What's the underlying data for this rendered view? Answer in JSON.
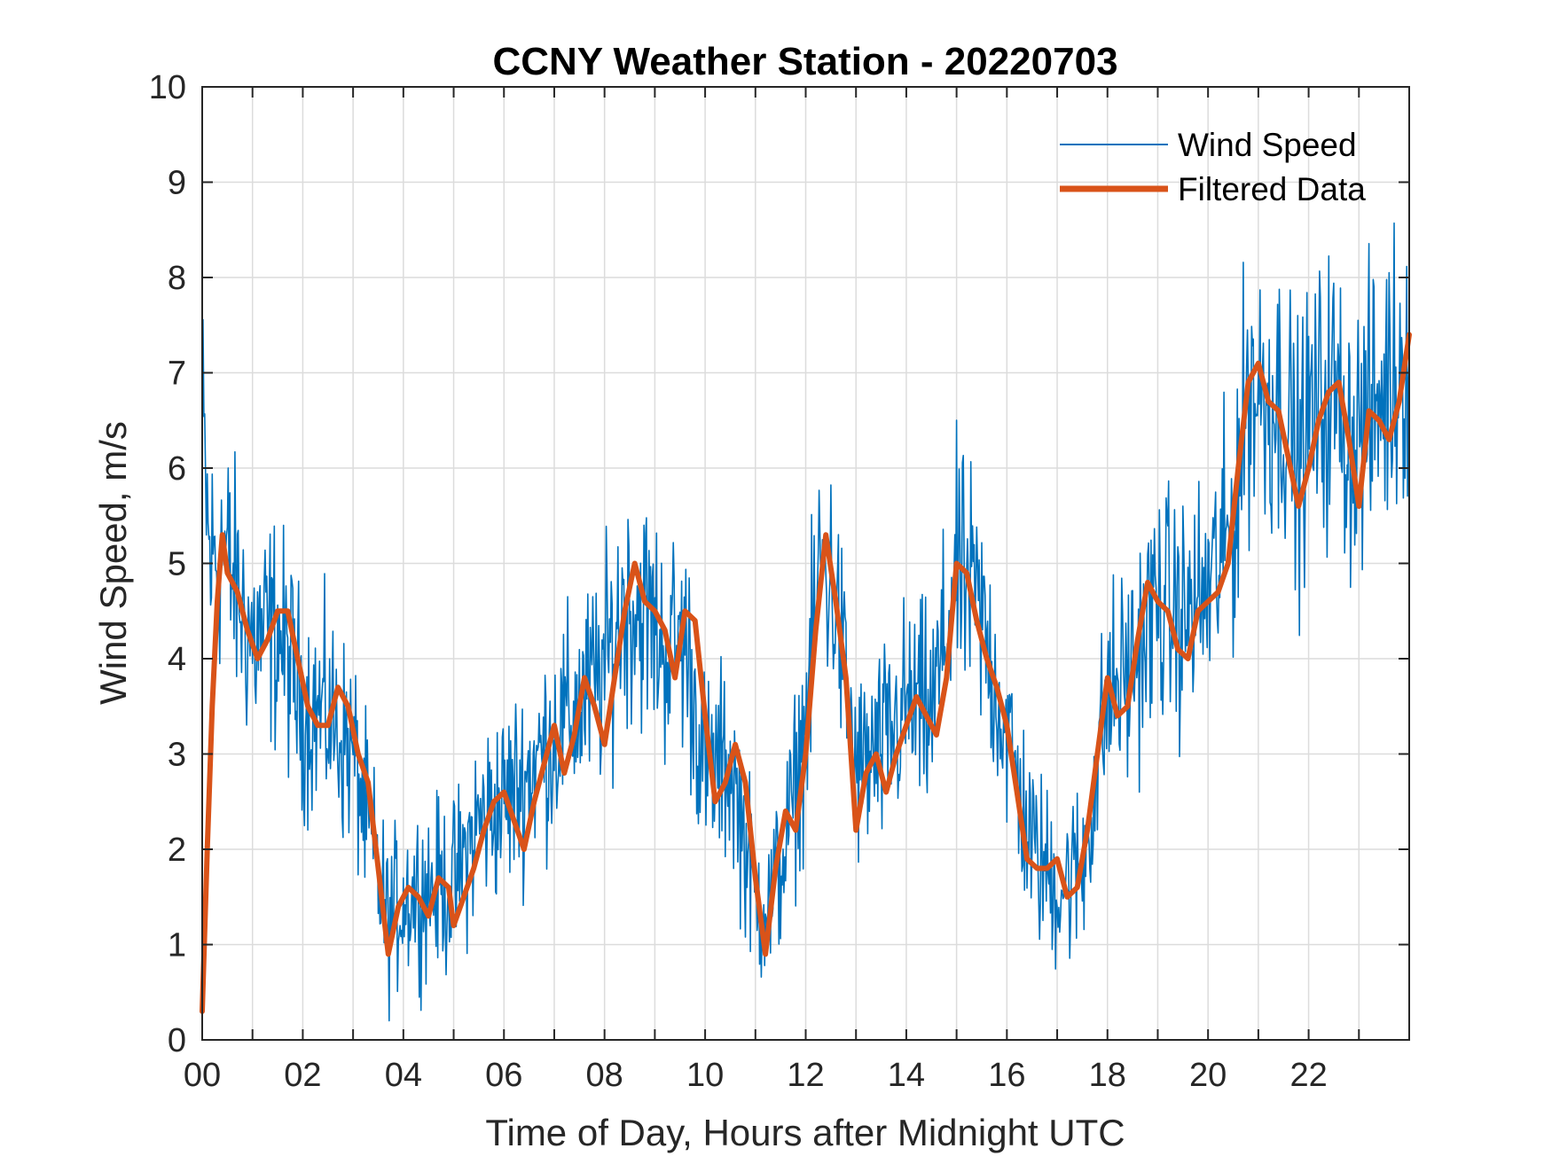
{
  "chart_data": {
    "type": "line",
    "title": "CCNY Weather Station - 20220703",
    "xlabel": "Time of Day, Hours after Midnight UTC",
    "ylabel": "Wind Speed, m/s",
    "xlim": [
      0,
      24
    ],
    "ylim": [
      0,
      10
    ],
    "grid": true,
    "legend_position": "top-right",
    "x_ticks": [
      0,
      2,
      4,
      6,
      8,
      10,
      12,
      14,
      16,
      18,
      20,
      22
    ],
    "x_tick_labels": [
      "00",
      "02",
      "04",
      "06",
      "08",
      "10",
      "12",
      "14",
      "16",
      "18",
      "20",
      "22"
    ],
    "y_ticks": [
      0,
      1,
      2,
      3,
      4,
      5,
      6,
      7,
      8,
      9,
      10
    ],
    "y_tick_labels": [
      "0",
      "1",
      "2",
      "3",
      "4",
      "5",
      "6",
      "7",
      "8",
      "9",
      "10"
    ],
    "series": [
      {
        "name": "Wind Speed",
        "color": "#0072BD",
        "noise_amplitude": 0.9,
        "samples_per_hour": 60,
        "x": [
          0,
          0.15,
          0.4,
          0.8,
          1.0,
          1.5,
          2.0,
          2.5,
          3.0,
          3.3,
          3.7,
          4.0,
          4.5,
          5.0,
          5.5,
          6.0,
          6.5,
          7.0,
          7.5,
          8.0,
          8.4,
          8.8,
          9.2,
          9.6,
          10.0,
          10.5,
          11.0,
          11.3,
          11.7,
          12.0,
          12.3,
          12.6,
          13.0,
          13.5,
          14.0,
          14.5,
          15.0,
          15.4,
          16.0,
          16.5,
          17.0,
          17.5,
          18.0,
          18.5,
          19.0,
          19.5,
          20.0,
          20.5,
          20.8,
          21.0,
          21.5,
          21.8,
          22.0,
          22.5,
          22.8,
          23.0,
          23.3,
          23.6,
          24.0
        ],
        "values": [
          6.5,
          5.0,
          5.2,
          4.5,
          4.2,
          4.3,
          3.5,
          3.4,
          3.0,
          2.2,
          1.2,
          1.5,
          1.6,
          1.6,
          2.3,
          2.5,
          2.8,
          3.2,
          3.5,
          3.9,
          4.6,
          4.5,
          4.1,
          4.2,
          2.8,
          2.9,
          1.5,
          1.4,
          2.3,
          3.3,
          5.1,
          4.6,
          2.8,
          3.0,
          3.5,
          3.4,
          4.9,
          4.6,
          3.2,
          2.0,
          1.6,
          1.8,
          3.6,
          3.9,
          4.6,
          4.4,
          4.7,
          5.4,
          6.9,
          6.8,
          6.7,
          6.0,
          6.5,
          6.8,
          6.3,
          6.4,
          6.6,
          6.9,
          7.3
        ]
      },
      {
        "name": "Filtered Data",
        "color": "#D95319",
        "x": [
          0.0,
          0.1,
          0.2,
          0.3,
          0.4,
          0.5,
          0.7,
          0.9,
          1.1,
          1.3,
          1.5,
          1.7,
          1.9,
          2.1,
          2.3,
          2.5,
          2.7,
          2.9,
          3.1,
          3.3,
          3.5,
          3.7,
          3.9,
          4.1,
          4.3,
          4.5,
          4.7,
          4.9,
          5.0,
          5.2,
          5.4,
          5.6,
          5.8,
          6.0,
          6.2,
          6.4,
          6.6,
          6.8,
          7.0,
          7.2,
          7.4,
          7.6,
          7.8,
          8.0,
          8.2,
          8.4,
          8.6,
          8.8,
          9.0,
          9.2,
          9.4,
          9.6,
          9.8,
          10.0,
          10.2,
          10.4,
          10.6,
          10.8,
          11.0,
          11.2,
          11.4,
          11.6,
          11.8,
          12.0,
          12.2,
          12.4,
          12.6,
          12.8,
          13.0,
          13.2,
          13.4,
          13.6,
          13.8,
          14.0,
          14.2,
          14.4,
          14.6,
          14.8,
          15.0,
          15.2,
          15.4,
          15.6,
          15.8,
          16.0,
          16.2,
          16.4,
          16.6,
          16.8,
          17.0,
          17.2,
          17.4,
          17.6,
          17.8,
          18.0,
          18.2,
          18.4,
          18.6,
          18.8,
          19.0,
          19.2,
          19.4,
          19.6,
          19.8,
          20.0,
          20.2,
          20.4,
          20.6,
          20.8,
          21.0,
          21.2,
          21.4,
          21.6,
          21.8,
          22.0,
          22.2,
          22.4,
          22.6,
          22.8,
          23.0,
          23.2,
          23.4,
          23.6,
          23.8,
          24.0
        ],
        "values": [
          0.3,
          2.0,
          3.5,
          4.6,
          5.3,
          4.9,
          4.7,
          4.3,
          4.0,
          4.2,
          4.5,
          4.5,
          4.0,
          3.5,
          3.3,
          3.3,
          3.7,
          3.5,
          3.0,
          2.7,
          1.8,
          0.9,
          1.4,
          1.6,
          1.5,
          1.3,
          1.7,
          1.6,
          1.2,
          1.5,
          1.8,
          2.2,
          2.5,
          2.6,
          2.3,
          2.0,
          2.5,
          2.9,
          3.3,
          2.8,
          3.2,
          3.8,
          3.5,
          3.1,
          3.8,
          4.5,
          5.0,
          4.6,
          4.5,
          4.3,
          3.8,
          4.5,
          4.4,
          3.4,
          2.5,
          2.7,
          3.1,
          2.7,
          1.7,
          0.9,
          1.8,
          2.4,
          2.2,
          3.0,
          4.3,
          5.3,
          4.6,
          3.8,
          2.2,
          2.8,
          3.0,
          2.6,
          3.0,
          3.3,
          3.6,
          3.4,
          3.2,
          3.8,
          5.0,
          4.9,
          4.4,
          4.0,
          3.7,
          3.3,
          2.6,
          1.9,
          1.8,
          1.8,
          1.9,
          1.5,
          1.6,
          2.2,
          3.0,
          3.8,
          3.4,
          3.5,
          4.2,
          4.8,
          4.6,
          4.5,
          4.1,
          4.0,
          4.5,
          4.6,
          4.7,
          5.0,
          6.0,
          6.9,
          7.1,
          6.7,
          6.6,
          6.1,
          5.6,
          6.0,
          6.5,
          6.8,
          6.9,
          6.3,
          5.6,
          6.6,
          6.5,
          6.3,
          6.7,
          7.4
        ]
      }
    ]
  }
}
